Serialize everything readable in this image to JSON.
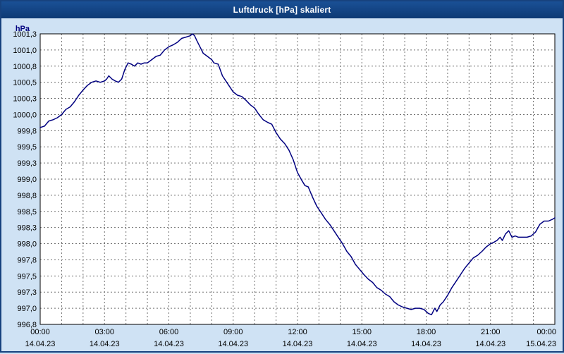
{
  "window": {
    "title": "Luftdruck [hPa] skaliert"
  },
  "colors": {
    "window_background": "#cfe2f4",
    "titlebar": "#0e3a74",
    "plot_background": "#ffffff",
    "plot_border": "#000000",
    "grid": "#707070",
    "line": "#000080",
    "label_text": "#000000"
  },
  "chart_data": {
    "type": "line",
    "title": "Luftdruck [hPa] skaliert",
    "unit_label": "hPa",
    "xlabel": "",
    "ylabel": "hPa",
    "xlim_hours": [
      0,
      24
    ],
    "ylim": [
      996.75,
      1001.25
    ],
    "grid": "dashed, hourly vertical lines, 0.25 hPa horizontal lines",
    "legend": "none",
    "x_tick_hours": [
      0,
      3,
      6,
      9,
      12,
      15,
      18,
      21,
      24
    ],
    "x_tick_labels": [
      "00:00",
      "03:00",
      "06:00",
      "09:00",
      "12:00",
      "15:00",
      "18:00",
      "21:00",
      "00:00"
    ],
    "x_tick_dates": [
      "14.04.23",
      "14.04.23",
      "14.04.23",
      "14.04.23",
      "14.04.23",
      "14.04.23",
      "14.04.23",
      "14.04.23",
      "15.04.23"
    ],
    "y_tick_labels": [
      "1001,3",
      "1001,0",
      "1000,8",
      "1000,5",
      "1000,3",
      "1000,0",
      "999,8",
      "999,5",
      "999,3",
      "999,0",
      "998,8",
      "998,5",
      "998,3",
      "998,0",
      "997,8",
      "997,5",
      "997,3",
      "997,0",
      "996,8"
    ],
    "y_tick_values": [
      1001.25,
      1001.0,
      1000.75,
      1000.5,
      1000.25,
      1000.0,
      999.75,
      999.5,
      999.25,
      999.0,
      998.75,
      998.5,
      998.25,
      998.0,
      997.75,
      997.5,
      997.25,
      997.0,
      996.75
    ],
    "series": [
      {
        "name": "Luftdruck",
        "color": "#000080",
        "points": [
          [
            0.0,
            999.8
          ],
          [
            0.2,
            999.82
          ],
          [
            0.4,
            999.9
          ],
          [
            0.6,
            999.92
          ],
          [
            0.8,
            999.95
          ],
          [
            1.0,
            1000.0
          ],
          [
            1.2,
            1000.08
          ],
          [
            1.4,
            1000.12
          ],
          [
            1.6,
            1000.2
          ],
          [
            1.8,
            1000.3
          ],
          [
            2.0,
            1000.38
          ],
          [
            2.2,
            1000.45
          ],
          [
            2.4,
            1000.5
          ],
          [
            2.6,
            1000.52
          ],
          [
            2.8,
            1000.5
          ],
          [
            3.0,
            1000.52
          ],
          [
            3.1,
            1000.55
          ],
          [
            3.2,
            1000.6
          ],
          [
            3.35,
            1000.55
          ],
          [
            3.5,
            1000.52
          ],
          [
            3.65,
            1000.5
          ],
          [
            3.8,
            1000.55
          ],
          [
            3.95,
            1000.7
          ],
          [
            4.1,
            1000.8
          ],
          [
            4.25,
            1000.78
          ],
          [
            4.4,
            1000.75
          ],
          [
            4.55,
            1000.8
          ],
          [
            4.7,
            1000.78
          ],
          [
            4.85,
            1000.8
          ],
          [
            5.0,
            1000.8
          ],
          [
            5.2,
            1000.85
          ],
          [
            5.4,
            1000.9
          ],
          [
            5.6,
            1000.92
          ],
          [
            5.8,
            1001.0
          ],
          [
            6.0,
            1001.05
          ],
          [
            6.2,
            1001.08
          ],
          [
            6.4,
            1001.12
          ],
          [
            6.6,
            1001.18
          ],
          [
            6.8,
            1001.2
          ],
          [
            7.0,
            1001.22
          ],
          [
            7.1,
            1001.25
          ],
          [
            7.2,
            1001.22
          ],
          [
            7.3,
            1001.15
          ],
          [
            7.45,
            1001.05
          ],
          [
            7.6,
            1000.95
          ],
          [
            7.8,
            1000.9
          ],
          [
            8.0,
            1000.85
          ],
          [
            8.1,
            1000.8
          ],
          [
            8.3,
            1000.78
          ],
          [
            8.5,
            1000.6
          ],
          [
            8.7,
            1000.5
          ],
          [
            8.9,
            1000.4
          ],
          [
            9.0,
            1000.35
          ],
          [
            9.2,
            1000.3
          ],
          [
            9.4,
            1000.28
          ],
          [
            9.6,
            1000.22
          ],
          [
            9.8,
            1000.15
          ],
          [
            10.0,
            1000.1
          ],
          [
            10.2,
            1000.0
          ],
          [
            10.4,
            999.92
          ],
          [
            10.6,
            999.88
          ],
          [
            10.8,
            999.85
          ],
          [
            11.0,
            999.72
          ],
          [
            11.2,
            999.62
          ],
          [
            11.4,
            999.55
          ],
          [
            11.6,
            999.45
          ],
          [
            11.8,
            999.3
          ],
          [
            12.0,
            999.1
          ],
          [
            12.2,
            998.98
          ],
          [
            12.35,
            998.9
          ],
          [
            12.5,
            998.88
          ],
          [
            12.7,
            998.72
          ],
          [
            12.9,
            998.58
          ],
          [
            13.1,
            998.48
          ],
          [
            13.3,
            998.38
          ],
          [
            13.5,
            998.3
          ],
          [
            13.7,
            998.2
          ],
          [
            13.9,
            998.1
          ],
          [
            14.1,
            998.0
          ],
          [
            14.3,
            997.88
          ],
          [
            14.5,
            997.8
          ],
          [
            14.7,
            997.68
          ],
          [
            14.9,
            997.6
          ],
          [
            15.1,
            997.52
          ],
          [
            15.3,
            997.45
          ],
          [
            15.5,
            997.4
          ],
          [
            15.7,
            997.32
          ],
          [
            15.9,
            997.28
          ],
          [
            16.1,
            997.22
          ],
          [
            16.3,
            997.18
          ],
          [
            16.5,
            997.1
          ],
          [
            16.7,
            997.05
          ],
          [
            16.9,
            997.02
          ],
          [
            17.1,
            997.0
          ],
          [
            17.3,
            996.98
          ],
          [
            17.5,
            997.0
          ],
          [
            17.7,
            997.0
          ],
          [
            17.9,
            996.98
          ],
          [
            18.1,
            996.92
          ],
          [
            18.25,
            996.9
          ],
          [
            18.4,
            997.0
          ],
          [
            18.5,
            996.95
          ],
          [
            18.65,
            997.05
          ],
          [
            18.8,
            997.1
          ],
          [
            19.0,
            997.2
          ],
          [
            19.2,
            997.32
          ],
          [
            19.4,
            997.42
          ],
          [
            19.6,
            997.52
          ],
          [
            19.8,
            997.62
          ],
          [
            20.0,
            997.7
          ],
          [
            20.2,
            997.78
          ],
          [
            20.4,
            997.82
          ],
          [
            20.6,
            997.88
          ],
          [
            20.8,
            997.95
          ],
          [
            21.0,
            998.0
          ],
          [
            21.15,
            998.02
          ],
          [
            21.3,
            998.05
          ],
          [
            21.45,
            998.1
          ],
          [
            21.55,
            998.05
          ],
          [
            21.7,
            998.15
          ],
          [
            21.85,
            998.2
          ],
          [
            22.0,
            998.1
          ],
          [
            22.15,
            998.12
          ],
          [
            22.3,
            998.1
          ],
          [
            22.5,
            998.1
          ],
          [
            22.7,
            998.1
          ],
          [
            22.9,
            998.12
          ],
          [
            23.1,
            998.18
          ],
          [
            23.3,
            998.3
          ],
          [
            23.5,
            998.35
          ],
          [
            23.7,
            998.35
          ],
          [
            23.9,
            998.38
          ],
          [
            24.0,
            998.4
          ]
        ]
      }
    ]
  }
}
